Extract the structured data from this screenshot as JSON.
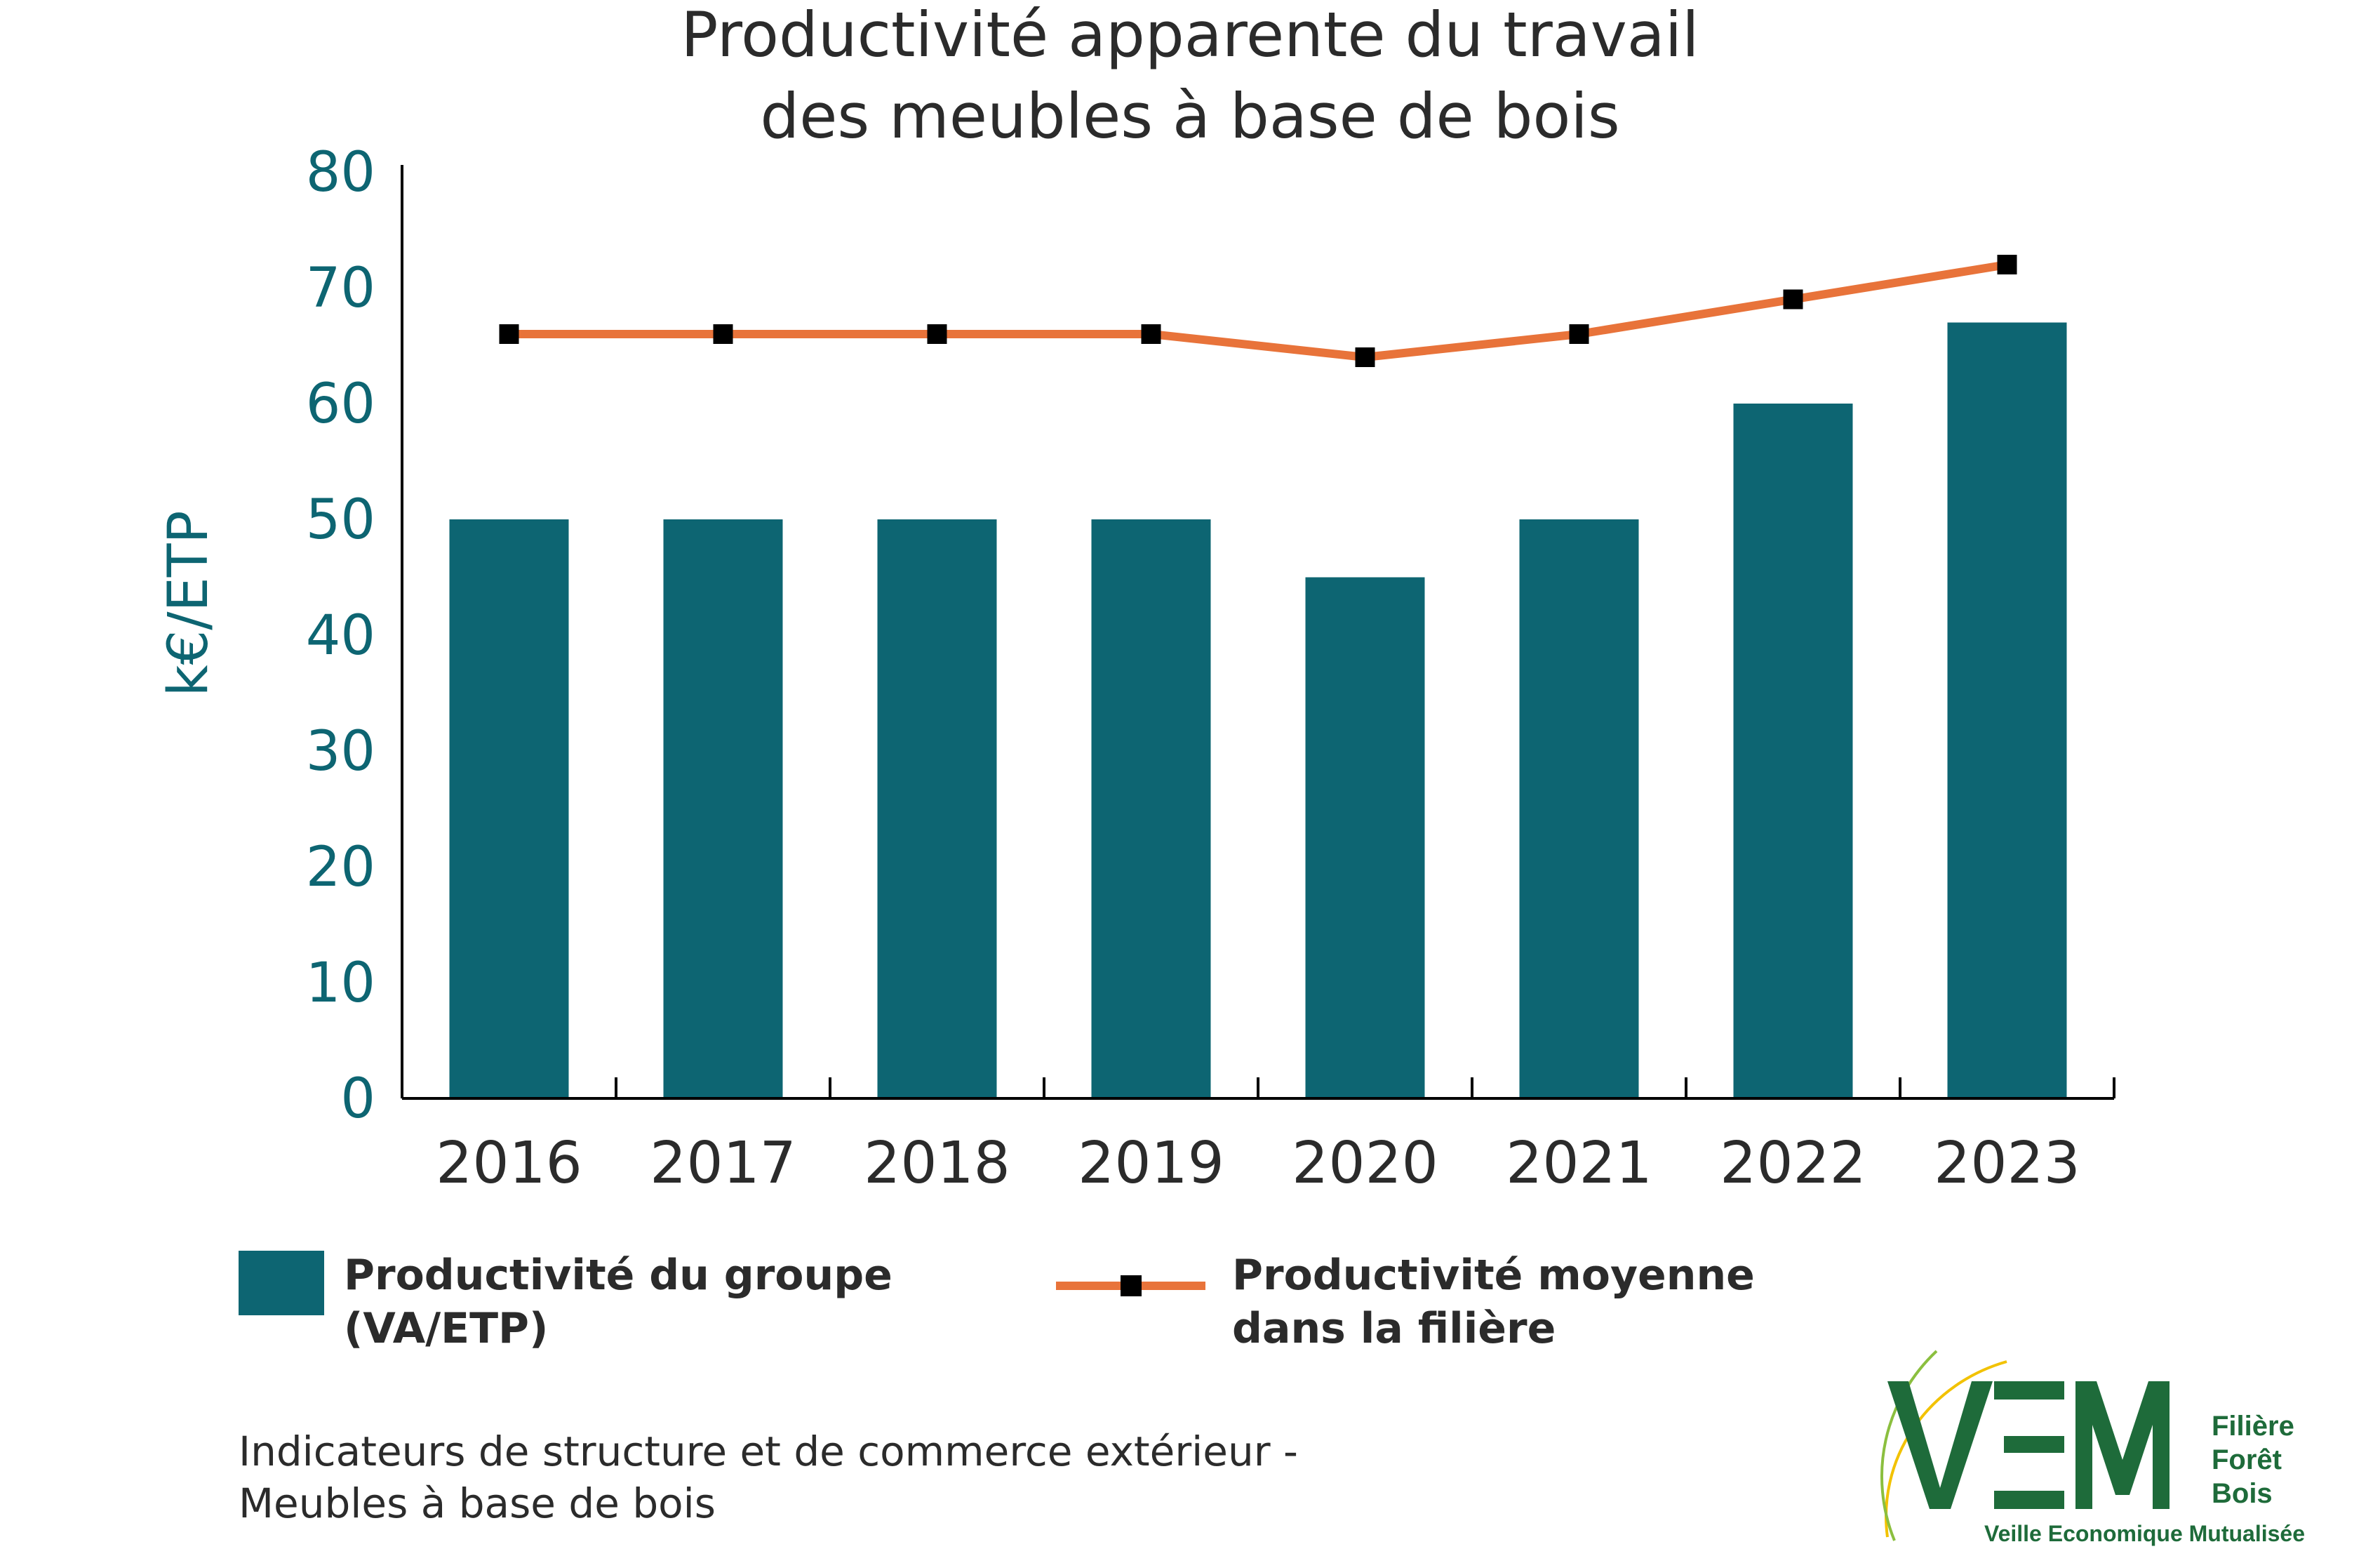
{
  "chart_data": {
    "type": "bar",
    "title_lines": [
      "Productivité apparente du travail",
      "des meubles à base de bois"
    ],
    "xlabel": "",
    "ylabel": "k€/ETP",
    "ylim": [
      0,
      80
    ],
    "yticks": [
      0,
      10,
      20,
      30,
      40,
      50,
      60,
      70,
      80
    ],
    "categories": [
      "2016",
      "2017",
      "2018",
      "2019",
      "2020",
      "2021",
      "2022",
      "2023"
    ],
    "series": [
      {
        "name": "Productivité du groupe (VA/ETP)",
        "legend_lines": [
          "Productivité du groupe",
          "(VA/ETP)"
        ],
        "type": "bar",
        "color": "#0d6572",
        "values": [
          50,
          50,
          50,
          50,
          45,
          50,
          60,
          67
        ]
      },
      {
        "name": "Productivité moyenne dans la filière",
        "legend_lines": [
          "Productivité moyenne",
          "dans la filière"
        ],
        "type": "line",
        "color": "#e8733a",
        "marker_color": "#000000",
        "values": [
          66,
          66,
          66,
          66,
          64,
          66,
          69,
          72
        ]
      }
    ],
    "grid": false,
    "legend_position": "bottom"
  },
  "source": {
    "lines": [
      "Indicateurs de structure et de commerce extérieur -",
      "Meubles à base de bois"
    ]
  },
  "logo": {
    "letters": "VEM",
    "lines": [
      "Filière",
      "Forêt",
      "Bois"
    ],
    "tagline": "Veille Economique Mutualisée",
    "color": "#1e6b3a",
    "accent": "#f2c200"
  }
}
